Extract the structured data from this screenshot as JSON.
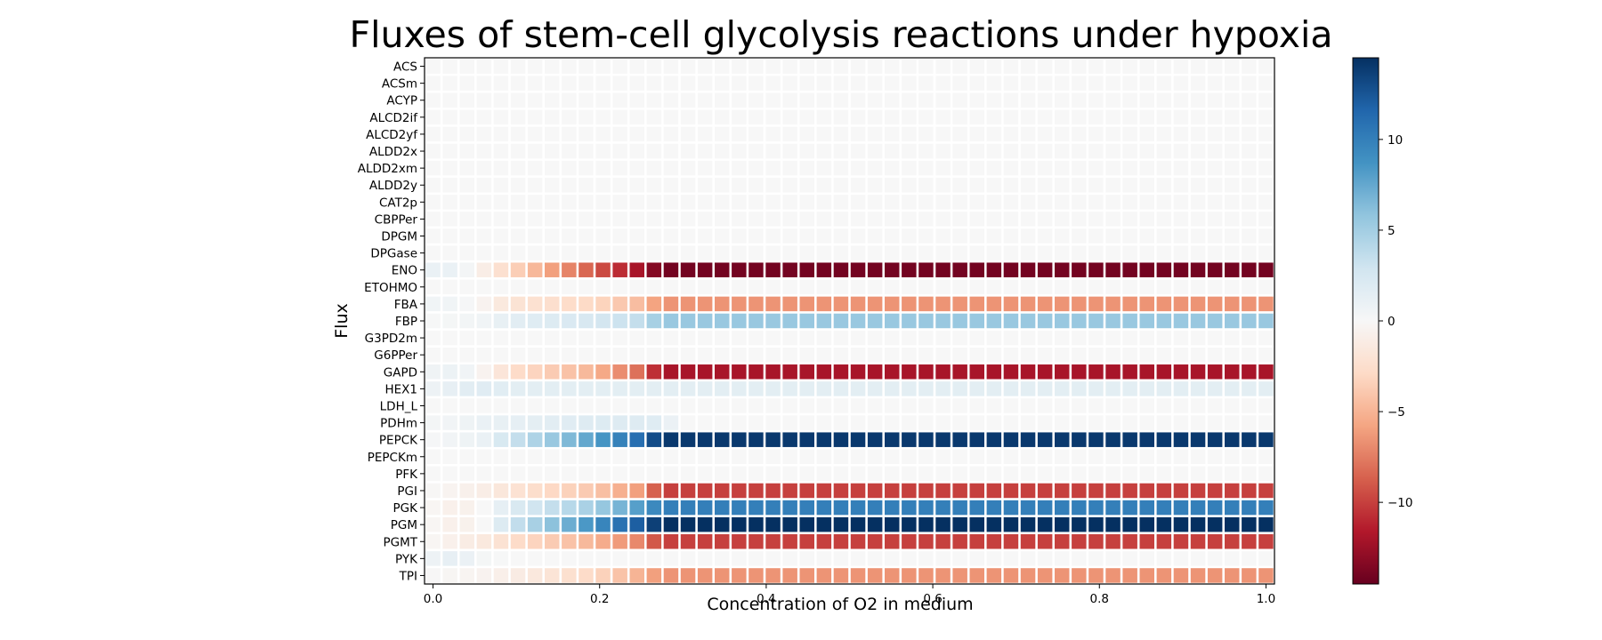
{
  "chart_data": {
    "type": "heatmap",
    "title": "Fluxes of stem-cell glycolysis reactions under hypoxia",
    "xlabel": "Concentration of O2 in medium",
    "ylabel": "Flux",
    "xlim": [
      0.0,
      1.0
    ],
    "x_ticks": [
      "0.0",
      "0.2",
      "0.4",
      "0.6",
      "0.8",
      "1.0"
    ],
    "x_tick_values": [
      0.0,
      0.2,
      0.4,
      0.6,
      0.8,
      1.0
    ],
    "n_columns": 50,
    "colormap": "RdBu",
    "color_low": "#67001f",
    "color_high": "#053061",
    "vmin": -14.5,
    "vmax": 14.5,
    "colorbar_ticks": [
      "−10",
      "−5",
      "0",
      "5",
      "10"
    ],
    "colorbar_tick_values": [
      -10,
      -5,
      0,
      5,
      10
    ],
    "rows": [
      {
        "name": "ACS",
        "seg": [
          [
            0,
            0
          ]
        ]
      },
      {
        "name": "ACSm",
        "seg": [
          [
            0,
            0
          ]
        ]
      },
      {
        "name": "ACYP",
        "seg": [
          [
            0,
            0
          ]
        ]
      },
      {
        "name": "ALCD2if",
        "seg": [
          [
            0,
            0
          ]
        ]
      },
      {
        "name": "ALCD2yf",
        "seg": [
          [
            0,
            0
          ]
        ]
      },
      {
        "name": "ALDD2x",
        "seg": [
          [
            0,
            0
          ]
        ]
      },
      {
        "name": "ALDD2xm",
        "seg": [
          [
            0,
            0
          ]
        ]
      },
      {
        "name": "ALDD2y",
        "seg": [
          [
            0,
            0
          ]
        ]
      },
      {
        "name": "CAT2p",
        "seg": [
          [
            0,
            0
          ]
        ]
      },
      {
        "name": "CBPPer",
        "seg": [
          [
            0,
            0
          ]
        ]
      },
      {
        "name": "DPGM",
        "seg": [
          [
            0,
            0
          ]
        ]
      },
      {
        "name": "DPGase",
        "seg": [
          [
            0,
            0
          ]
        ]
      },
      {
        "name": "ENO",
        "seg": [
          [
            0,
            1
          ],
          [
            0.04,
            1
          ],
          [
            0.07,
            -1
          ],
          [
            0.1,
            -3
          ],
          [
            0.2,
            -9
          ],
          [
            0.25,
            -12
          ],
          [
            0.28,
            -14
          ],
          [
            1.0,
            -14
          ]
        ]
      },
      {
        "name": "ETOHMO",
        "seg": [
          [
            0,
            0
          ]
        ]
      },
      {
        "name": "FBA",
        "seg": [
          [
            0,
            0.5
          ],
          [
            0.04,
            0.5
          ],
          [
            0.07,
            -0.5
          ],
          [
            0.1,
            -2
          ],
          [
            0.2,
            -3
          ],
          [
            0.25,
            -4.5
          ],
          [
            0.28,
            -6.5
          ],
          [
            1.0,
            -6.5
          ]
        ]
      },
      {
        "name": "FBP",
        "seg": [
          [
            0,
            0
          ],
          [
            0.07,
            0.5
          ],
          [
            0.1,
            1.5
          ],
          [
            0.2,
            2.5
          ],
          [
            0.25,
            3.5
          ],
          [
            0.28,
            5.5
          ],
          [
            1.0,
            5.5
          ]
        ]
      },
      {
        "name": "G3PD2m",
        "seg": [
          [
            0,
            0
          ]
        ]
      },
      {
        "name": "G6PPer",
        "seg": [
          [
            0,
            0
          ]
        ]
      },
      {
        "name": "GAPD",
        "seg": [
          [
            0,
            0.5
          ],
          [
            0.04,
            1
          ],
          [
            0.07,
            -0.5
          ],
          [
            0.1,
            -2.5
          ],
          [
            0.2,
            -5
          ],
          [
            0.25,
            -8
          ],
          [
            0.28,
            -12
          ],
          [
            1.0,
            -12
          ]
        ]
      },
      {
        "name": "HEX1",
        "seg": [
          [
            0,
            0.5
          ],
          [
            0.04,
            1.5
          ],
          [
            0.08,
            1.8
          ],
          [
            0.1,
            1.5
          ],
          [
            0.28,
            1.5
          ],
          [
            1.0,
            1.5
          ]
        ]
      },
      {
        "name": "LDH_L",
        "seg": [
          [
            0,
            0
          ]
        ]
      },
      {
        "name": "PDHm",
        "seg": [
          [
            0,
            0.2
          ],
          [
            0.04,
            0.5
          ],
          [
            0.07,
            1
          ],
          [
            0.2,
            2
          ],
          [
            0.28,
            1.8
          ],
          [
            0.3,
            0
          ],
          [
            1.0,
            0
          ]
        ]
      },
      {
        "name": "PEPCK",
        "seg": [
          [
            0,
            0
          ],
          [
            0.07,
            1
          ],
          [
            0.1,
            3
          ],
          [
            0.2,
            8
          ],
          [
            0.25,
            11
          ],
          [
            0.28,
            14
          ],
          [
            1.0,
            14
          ]
        ]
      },
      {
        "name": "PEPCKm",
        "seg": [
          [
            0,
            0
          ]
        ]
      },
      {
        "name": "PFK",
        "seg": [
          [
            0,
            0
          ]
        ]
      },
      {
        "name": "PGI",
        "seg": [
          [
            0,
            0
          ],
          [
            0.07,
            -1
          ],
          [
            0.1,
            -2
          ],
          [
            0.2,
            -4
          ],
          [
            0.25,
            -6
          ],
          [
            0.28,
            -10
          ],
          [
            1.0,
            -10
          ]
        ]
      },
      {
        "name": "PGK",
        "seg": [
          [
            0,
            0
          ],
          [
            0.04,
            -1
          ],
          [
            0.07,
            0
          ],
          [
            0.1,
            2
          ],
          [
            0.2,
            5
          ],
          [
            0.25,
            8
          ],
          [
            0.28,
            10
          ],
          [
            1.0,
            10
          ]
        ]
      },
      {
        "name": "PGM",
        "seg": [
          [
            0,
            0
          ],
          [
            0.04,
            -1
          ],
          [
            0.07,
            0
          ],
          [
            0.1,
            3
          ],
          [
            0.2,
            9
          ],
          [
            0.25,
            12
          ],
          [
            0.28,
            14.5
          ],
          [
            1.0,
            14.5
          ]
        ]
      },
      {
        "name": "PGMT",
        "seg": [
          [
            0,
            0
          ],
          [
            0.04,
            -1
          ],
          [
            0.07,
            -1.5
          ],
          [
            0.1,
            -2.5
          ],
          [
            0.2,
            -5
          ],
          [
            0.25,
            -7
          ],
          [
            0.28,
            -10
          ],
          [
            1.0,
            -10
          ]
        ]
      },
      {
        "name": "PYK",
        "seg": [
          [
            0,
            0.5
          ],
          [
            0.04,
            1.5
          ],
          [
            0.06,
            0.3
          ],
          [
            0.1,
            0
          ],
          [
            1.0,
            0
          ]
        ]
      },
      {
        "name": "TPI",
        "seg": [
          [
            0,
            0
          ],
          [
            0.07,
            -0.5
          ],
          [
            0.1,
            -1
          ],
          [
            0.2,
            -3
          ],
          [
            0.25,
            -5
          ],
          [
            0.28,
            -6.5
          ],
          [
            1.0,
            -6.5
          ]
        ]
      }
    ]
  }
}
